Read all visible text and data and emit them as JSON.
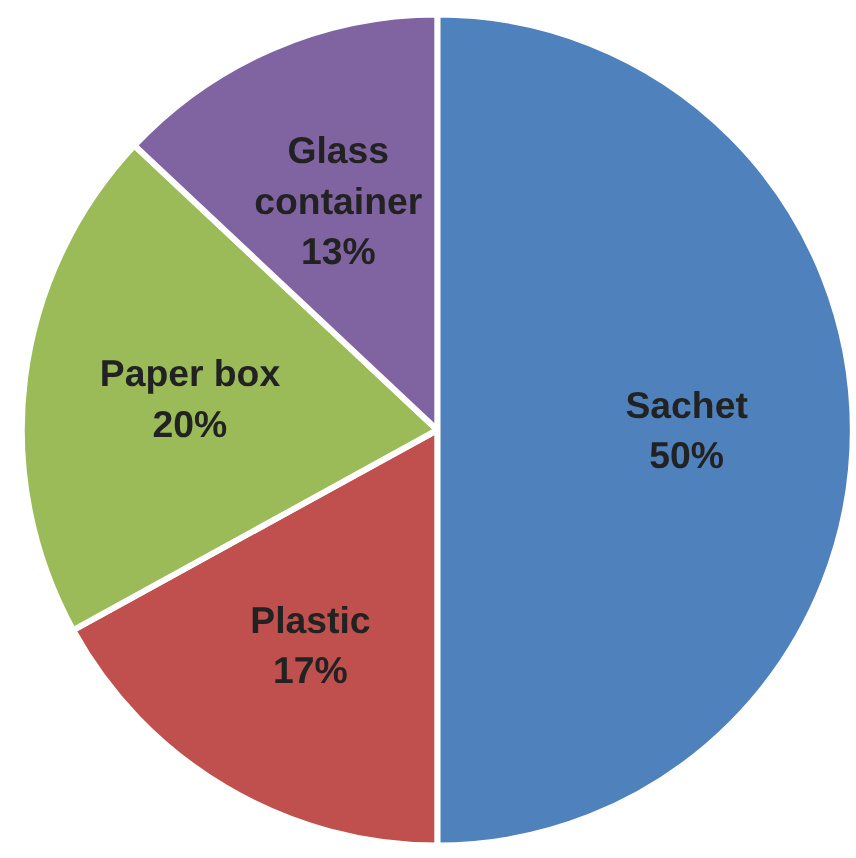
{
  "chart_data": {
    "type": "pie",
    "categories": [
      "Sachet",
      "Plastic",
      "Paper box",
      "Glass container"
    ],
    "values": [
      50,
      17,
      20,
      13
    ],
    "value_labels": [
      "50%",
      "17%",
      "20%",
      "13%"
    ],
    "colors": [
      "#4f81bd",
      "#c0504d",
      "#9bbb59",
      "#8064a2"
    ]
  }
}
